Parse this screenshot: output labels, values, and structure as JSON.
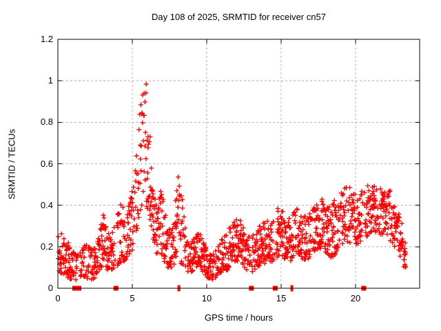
{
  "page": {
    "background": "#ffffff"
  },
  "chart_data": {
    "type": "scatter",
    "title": "Day 108 of 2025, SRMTID for receiver cn57",
    "xlabel": "GPS time / hours",
    "ylabel": "SRMTID / TECUs",
    "xlim": [
      0,
      24.3
    ],
    "ylim": [
      0,
      1.2
    ],
    "xtick_labels": [
      "0",
      "5",
      "10",
      "15",
      "20"
    ],
    "xtick_values": [
      0,
      5,
      10,
      15,
      20
    ],
    "ytick_labels": [
      "0",
      "0.2",
      "0.4",
      "0.6",
      "0.8",
      "1",
      "1.2"
    ],
    "ytick_values": [
      0,
      0.2,
      0.4,
      0.6,
      0.8,
      1.0,
      1.2
    ],
    "grid": "dashed gray lines at major ticks",
    "legend": "none",
    "marker": "plus-cross",
    "marker_color": "#ff0000",
    "axis_color": "#000000",
    "grid_color": "#b0b0b0",
    "series_name": "SRMTID",
    "peak": {
      "hour": 5.85,
      "value": 1.05
    },
    "time_range_hours": [
      0.02,
      23.38
    ],
    "sample_step_hours": 0.0293,
    "seed": 108,
    "envelope_hour_min_max": [
      [
        0.0,
        0.08,
        0.3
      ],
      [
        0.3,
        0.07,
        0.25
      ],
      [
        0.7,
        0.05,
        0.22
      ],
      [
        1.0,
        0.03,
        0.18
      ],
      [
        1.3,
        0.04,
        0.16
      ],
      [
        1.6,
        0.06,
        0.2
      ],
      [
        2.0,
        0.04,
        0.22
      ],
      [
        2.3,
        0.03,
        0.18
      ],
      [
        2.6,
        0.07,
        0.22
      ],
      [
        2.9,
        0.1,
        0.32
      ],
      [
        3.1,
        0.12,
        0.37
      ],
      [
        3.3,
        0.08,
        0.28
      ],
      [
        3.6,
        0.08,
        0.25
      ],
      [
        3.9,
        0.1,
        0.33
      ],
      [
        4.2,
        0.12,
        0.42
      ],
      [
        4.5,
        0.12,
        0.38
      ],
      [
        4.8,
        0.15,
        0.4
      ],
      [
        5.1,
        0.2,
        0.55
      ],
      [
        5.3,
        0.28,
        0.7
      ],
      [
        5.5,
        0.35,
        0.88
      ],
      [
        5.65,
        0.4,
        1.02
      ],
      [
        5.85,
        0.42,
        1.05
      ],
      [
        6.0,
        0.38,
        0.95
      ],
      [
        6.2,
        0.3,
        0.78
      ],
      [
        6.45,
        0.22,
        0.52
      ],
      [
        6.7,
        0.15,
        0.4
      ],
      [
        6.9,
        0.15,
        0.52
      ],
      [
        7.1,
        0.12,
        0.45
      ],
      [
        7.35,
        0.1,
        0.3
      ],
      [
        7.6,
        0.1,
        0.28
      ],
      [
        7.9,
        0.12,
        0.45
      ],
      [
        8.1,
        0.12,
        0.55
      ],
      [
        8.35,
        0.1,
        0.45
      ],
      [
        8.6,
        0.08,
        0.26
      ],
      [
        8.9,
        0.07,
        0.22
      ],
      [
        9.2,
        0.08,
        0.26
      ],
      [
        9.5,
        0.1,
        0.3
      ],
      [
        9.8,
        0.07,
        0.22
      ],
      [
        10.1,
        0.05,
        0.18
      ],
      [
        10.4,
        0.04,
        0.16
      ],
      [
        10.7,
        0.06,
        0.2
      ],
      [
        11.0,
        0.08,
        0.24
      ],
      [
        11.3,
        0.08,
        0.26
      ],
      [
        11.6,
        0.1,
        0.3
      ],
      [
        11.9,
        0.12,
        0.33
      ],
      [
        12.2,
        0.14,
        0.35
      ],
      [
        12.5,
        0.1,
        0.28
      ],
      [
        12.8,
        0.08,
        0.25
      ],
      [
        13.1,
        0.08,
        0.26
      ],
      [
        13.4,
        0.1,
        0.3
      ],
      [
        13.7,
        0.12,
        0.32
      ],
      [
        14.0,
        0.12,
        0.33
      ],
      [
        14.3,
        0.12,
        0.32
      ],
      [
        14.6,
        0.14,
        0.35
      ],
      [
        14.9,
        0.16,
        0.42
      ],
      [
        15.2,
        0.14,
        0.36
      ],
      [
        15.5,
        0.12,
        0.34
      ],
      [
        15.8,
        0.14,
        0.36
      ],
      [
        16.1,
        0.16,
        0.4
      ],
      [
        16.4,
        0.14,
        0.36
      ],
      [
        16.7,
        0.12,
        0.34
      ],
      [
        17.0,
        0.15,
        0.38
      ],
      [
        17.3,
        0.16,
        0.4
      ],
      [
        17.6,
        0.18,
        0.42
      ],
      [
        17.9,
        0.18,
        0.44
      ],
      [
        18.2,
        0.16,
        0.42
      ],
      [
        18.5,
        0.14,
        0.44
      ],
      [
        18.8,
        0.18,
        0.46
      ],
      [
        19.1,
        0.2,
        0.46
      ],
      [
        19.4,
        0.22,
        0.52
      ],
      [
        19.7,
        0.22,
        0.48
      ],
      [
        20.0,
        0.2,
        0.46
      ],
      [
        20.3,
        0.22,
        0.48
      ],
      [
        20.6,
        0.24,
        0.5
      ],
      [
        20.9,
        0.26,
        0.5
      ],
      [
        21.2,
        0.28,
        0.5
      ],
      [
        21.5,
        0.26,
        0.48
      ],
      [
        21.8,
        0.26,
        0.48
      ],
      [
        22.1,
        0.24,
        0.46
      ],
      [
        22.4,
        0.22,
        0.48
      ],
      [
        22.7,
        0.18,
        0.4
      ],
      [
        23.0,
        0.15,
        0.35
      ],
      [
        23.2,
        0.1,
        0.28
      ],
      [
        23.4,
        0.08,
        0.2
      ]
    ],
    "baseline_squares_hours": [
      1.13,
      1.41,
      3.9,
      13.0,
      14.6,
      20.55
    ],
    "baseline_bars_hours": [
      8.08,
      8.18,
      15.67,
      15.77
    ]
  }
}
